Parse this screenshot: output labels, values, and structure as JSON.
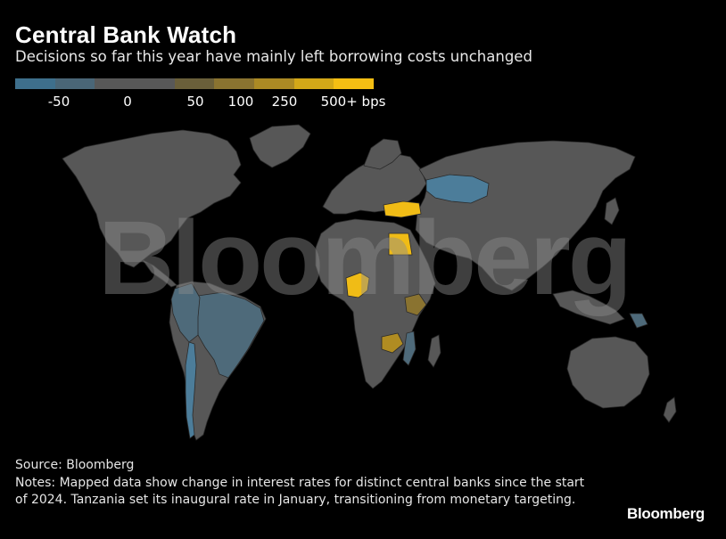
{
  "header": {
    "title": "Central Bank Watch",
    "subtitle": "Decisions so far this year have mainly left borrowing costs unchanged"
  },
  "legend": {
    "colors": [
      "#3e6f8c",
      "#4a6677",
      "#585858",
      "#585858",
      "#6a5f3a",
      "#8a7330",
      "#ab8a24",
      "#d3a818",
      "#f4be13"
    ],
    "labels": [
      "-50",
      "0",
      "50",
      "100",
      "250",
      "500+ bps"
    ]
  },
  "map": {
    "watermark": "Bloomberg",
    "colors": {
      "neutral": "#575757",
      "no_data": "#1a1a1a",
      "cut_50": "#4c7d9a",
      "cut_small": "#4e6a7a",
      "hike_small": "#8a7330",
      "hike_mid": "#b08c22",
      "hike_large": "#f0bc16"
    },
    "highlighted_regions": [
      {
        "name": "Kazakhstan",
        "color_key": "cut_50"
      },
      {
        "name": "Brazil",
        "color_key": "cut_small"
      },
      {
        "name": "Chile",
        "color_key": "cut_50"
      },
      {
        "name": "Peru",
        "color_key": "cut_small"
      },
      {
        "name": "Colombia",
        "color_key": "cut_small"
      },
      {
        "name": "Turkey",
        "color_key": "hike_large"
      },
      {
        "name": "Egypt",
        "color_key": "hike_large"
      },
      {
        "name": "Nigeria",
        "color_key": "hike_large"
      },
      {
        "name": "Zambia",
        "color_key": "hike_mid"
      },
      {
        "name": "Ethiopia",
        "color_key": "hike_small"
      },
      {
        "name": "Mozambique",
        "color_key": "cut_small"
      },
      {
        "name": "Papua New Guinea",
        "color_key": "cut_small"
      }
    ]
  },
  "footer": {
    "source": "Source: Bloomberg",
    "notes": "Notes: Mapped data show change in interest rates for distinct central banks since the start of 2024. Tanzania set its inaugural rate in January, transitioning from monetary targeting.",
    "brand": "Bloomberg"
  }
}
